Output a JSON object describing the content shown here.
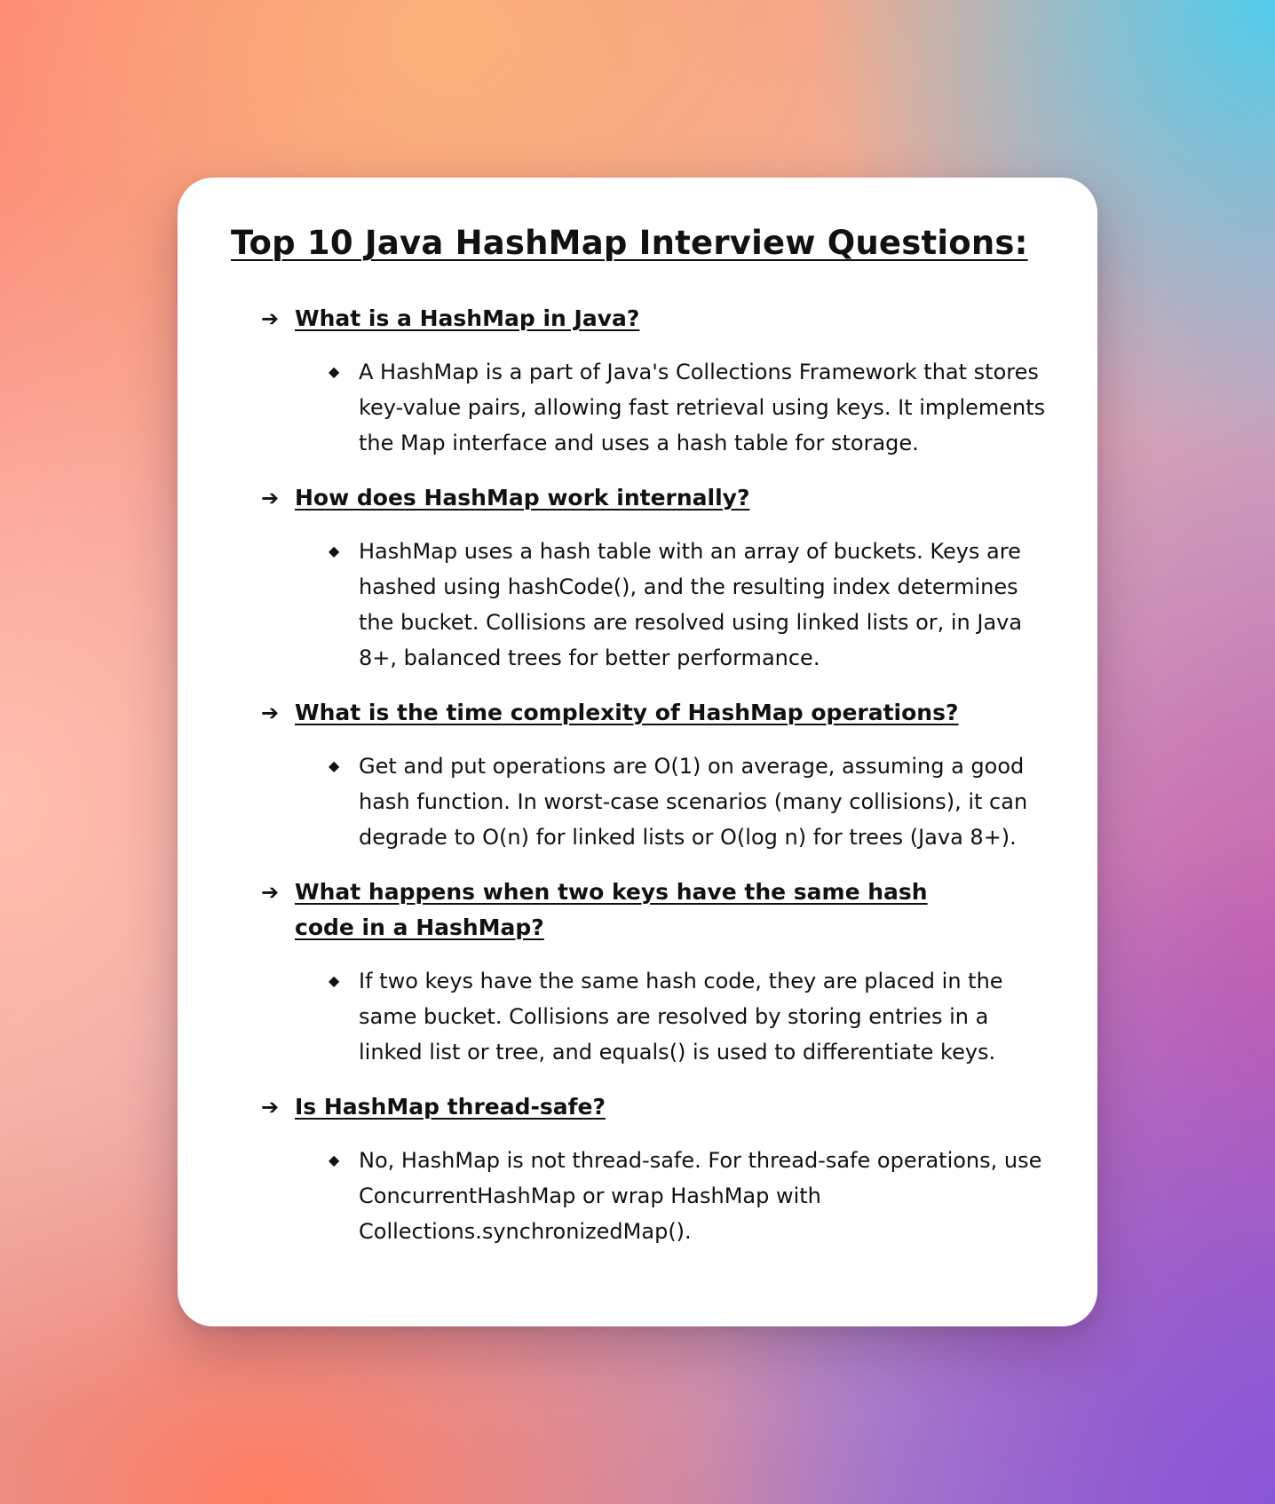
{
  "title": "Top 10 Java HashMap Interview Questions:",
  "icons": {
    "question_marker": "arrow-right-icon",
    "answer_marker": "diamond-bullet-icon"
  },
  "items": [
    {
      "question": "What is a HashMap in Java?",
      "answer": "A HashMap is a part of Java's Collections Framework that stores key-value pairs, allowing fast retrieval using keys. It implements the Map interface and uses a hash table for storage."
    },
    {
      "question": "How does HashMap work internally?",
      "answer": "HashMap uses a hash table with an array of buckets. Keys are hashed using hashCode(), and the resulting index determines the bucket. Collisions are resolved using linked lists or, in Java 8+, balanced trees for better performance."
    },
    {
      "question": "What is the time complexity of HashMap operations?",
      "answer": "Get and put operations are O(1) on average, assuming a good hash function. In worst-case scenarios (many collisions), it can degrade to O(n) for linked lists or O(log n) for trees (Java 8+)."
    },
    {
      "question": "What happens when two keys have the same hash code in a HashMap?",
      "answer": "If two keys have the same hash code, they are placed in the same bucket. Collisions are resolved by storing entries in a linked list or tree, and equals() is used to differentiate keys."
    },
    {
      "question": "Is HashMap thread-safe?",
      "answer": "No, HashMap is not thread-safe. For thread-safe operations, use ConcurrentHashMap or wrap HashMap with Collections.synchronizedMap()."
    }
  ]
}
